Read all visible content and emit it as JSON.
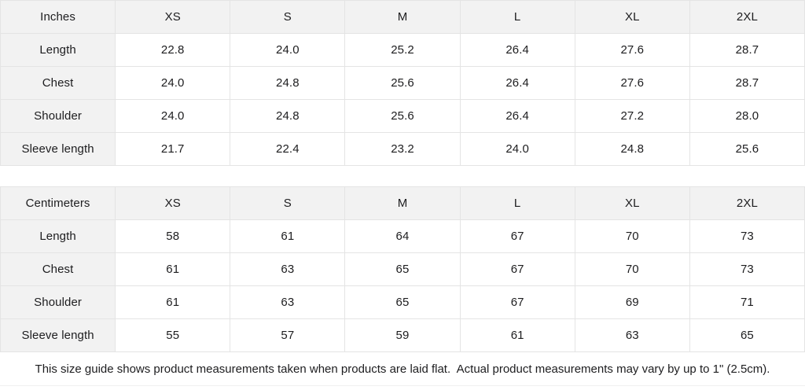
{
  "tables": [
    {
      "unit_label": "Inches",
      "sizes": [
        "XS",
        "S",
        "M",
        "L",
        "XL",
        "2XL"
      ],
      "rows": [
        {
          "label": "Length",
          "values": [
            "22.8",
            "24.0",
            "25.2",
            "26.4",
            "27.6",
            "28.7"
          ]
        },
        {
          "label": "Chest",
          "values": [
            "24.0",
            "24.8",
            "25.6",
            "26.4",
            "27.6",
            "28.7"
          ]
        },
        {
          "label": "Shoulder",
          "values": [
            "24.0",
            "24.8",
            "25.6",
            "26.4",
            "27.2",
            "28.0"
          ]
        },
        {
          "label": "Sleeve length",
          "values": [
            "21.7",
            "22.4",
            "23.2",
            "24.0",
            "24.8",
            "25.6"
          ]
        }
      ]
    },
    {
      "unit_label": "Centimeters",
      "sizes": [
        "XS",
        "S",
        "M",
        "L",
        "XL",
        "2XL"
      ],
      "rows": [
        {
          "label": "Length",
          "values": [
            "58",
            "61",
            "64",
            "67",
            "70",
            "73"
          ]
        },
        {
          "label": "Chest",
          "values": [
            "61",
            "63",
            "65",
            "67",
            "70",
            "73"
          ]
        },
        {
          "label": "Shoulder",
          "values": [
            "61",
            "63",
            "65",
            "67",
            "69",
            "71"
          ]
        },
        {
          "label": "Sleeve length",
          "values": [
            "55",
            "57",
            "59",
            "61",
            "63",
            "65"
          ]
        }
      ]
    }
  ],
  "footer_note": "This size guide shows product measurements taken when products are laid flat.  Actual product measurements may vary by up to 1\" (2.5cm).",
  "colors": {
    "header_bg": "#f2f2f2",
    "cell_bg": "#ffffff",
    "border": "#e4e4e4",
    "text": "#1d1d1f"
  }
}
